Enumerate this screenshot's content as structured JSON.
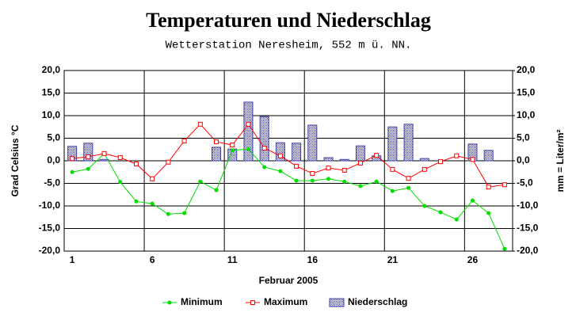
{
  "chart_data": {
    "type": "combo",
    "title": "Temperaturen und Niederschlag",
    "subtitle": "Wetterstation Neresheim, 552 m ü. NN.",
    "x_label": "Februar 2005",
    "y_label": "Grad Celsius °C",
    "y2_label": "mm = Liter/m²",
    "categories": [
      "1",
      null,
      null,
      null,
      null,
      "6",
      null,
      null,
      null,
      null,
      "11",
      null,
      null,
      null,
      null,
      "16",
      null,
      null,
      null,
      null,
      "21",
      null,
      null,
      null,
      null,
      "26",
      null,
      null
    ],
    "ylim": [
      -20,
      20
    ],
    "yticks": [
      {
        "value": -20,
        "label": "-20,0"
      },
      {
        "value": -15,
        "label": "-15,0"
      },
      {
        "value": -10,
        "label": "-10,0"
      },
      {
        "value": -5,
        "label": "-5,0"
      },
      {
        "value": 0,
        "label": "0,0"
      },
      {
        "value": 5,
        "label": "5,0"
      },
      {
        "value": 10,
        "label": "10,0"
      },
      {
        "value": 15,
        "label": "15,0"
      },
      {
        "value": 20,
        "label": "20,0"
      }
    ],
    "y2lim": [
      -20,
      20
    ],
    "y2ticks": [
      {
        "value": -20,
        "label": "-20,0"
      },
      {
        "value": -15,
        "label": "-15,0"
      },
      {
        "value": -10,
        "label": "-10,0"
      },
      {
        "value": -5,
        "label": "-5,0"
      },
      {
        "value": 0,
        "label": "0,0"
      },
      {
        "value": 5,
        "label": "5,0"
      },
      {
        "value": 10,
        "label": "10,0"
      },
      {
        "value": 15,
        "label": "15,0"
      },
      {
        "value": 20,
        "label": "20,0"
      }
    ],
    "grid": true,
    "legend": "bottom",
    "series": [
      {
        "name": "Minimum",
        "type": "line",
        "marker": "circle",
        "color": "#00dd00",
        "values": [
          -2.5,
          -1.8,
          1.6,
          -4.7,
          -9.0,
          -9.5,
          -11.8,
          -11.6,
          -4.6,
          -6.5,
          2.3,
          2.6,
          -1.4,
          -2.3,
          -4.4,
          -4.4,
          -4.0,
          -4.6,
          -5.6,
          -4.6,
          -6.7,
          -6.0,
          -10.0,
          -11.4,
          -13.0,
          -8.8,
          -11.6,
          -19.5
        ]
      },
      {
        "name": "Maximum",
        "type": "line",
        "marker": "square",
        "color": "#ff0000",
        "values": [
          0.5,
          0.9,
          1.6,
          0.7,
          -0.7,
          -4.0,
          -0.3,
          4.4,
          8.1,
          4.2,
          3.5,
          8.1,
          2.8,
          1.1,
          -1.2,
          -2.8,
          -1.6,
          -2.1,
          -0.5,
          1.2,
          -1.9,
          -3.9,
          -1.9,
          -0.2,
          1.1,
          0.3,
          -5.8,
          -5.3
        ]
      },
      {
        "name": "Niederschlag",
        "type": "bar",
        "axis": "y2",
        "color": "#4040a0",
        "values": [
          3.2,
          3.9,
          0.3,
          0,
          0,
          0,
          0,
          0,
          0,
          3.0,
          2.6,
          13.0,
          9.8,
          4.0,
          3.9,
          7.9,
          0.7,
          0.3,
          3.3,
          1.1,
          7.5,
          8.1,
          0.5,
          0,
          0,
          3.7,
          2.3,
          0
        ]
      }
    ]
  }
}
